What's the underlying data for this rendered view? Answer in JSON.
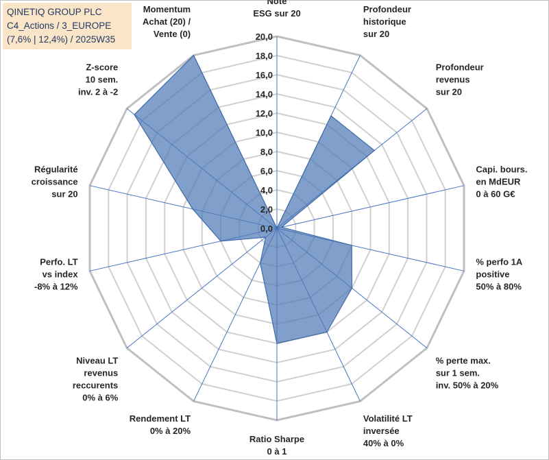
{
  "title_box": {
    "line1": "QINETIQ GROUP PLC",
    "line2": "C4_Actions / 3_EUROPE",
    "line3": "(7,6% | 12,4%) / 2025W35",
    "background": "#fbe5c8",
    "text_color": "#1f3a63"
  },
  "chart_data": {
    "type": "radar",
    "title": "QINETIQ GROUP PLC",
    "grid": true,
    "rlim": [
      0,
      20
    ],
    "tick_labels": [
      "0,0",
      "2,0",
      "4,0",
      "6,0",
      "8,0",
      "10,0",
      "12,0",
      "14,0",
      "16,0",
      "18,0",
      "20,0"
    ],
    "categories": [
      [
        "Note",
        "ESG sur 20"
      ],
      [
        "Profondeur",
        "historique",
        "sur 20"
      ],
      [
        "Profondeur",
        "revenus",
        "sur 20"
      ],
      [
        "Capi. bours.",
        "en MdEUR",
        "0 à 60 G€"
      ],
      [
        "% perfo 1A",
        "positive",
        "50% à 80%"
      ],
      [
        "% perte max.",
        "sur 1 sem.",
        "inv. 50% à 20%"
      ],
      [
        "Volatilité LT",
        "inversée",
        "40% à 0%"
      ],
      [
        "Ratio Sharpe",
        "0 à 1"
      ],
      [
        "Rendement LT",
        "0% à 20%"
      ],
      [
        "Niveau LT",
        "revenus",
        "reccurents",
        "0% à 6%"
      ],
      [
        "Perfo. LT",
        "vs index",
        "-8% à 12%"
      ],
      [
        "Régularité",
        "croissance",
        "sur 20"
      ],
      [
        "Z-score",
        "10 sem.",
        "inv. 2 à -2"
      ],
      [
        "Momentum",
        "Achat (20) /",
        "Vente (0)"
      ]
    ],
    "series": [
      {
        "values": [
          0.0,
          13.0,
          13.0,
          0.5,
          8.0,
          10.0,
          12.0,
          12.0,
          4.0,
          1.5,
          6.0,
          9.0,
          19.0,
          20.0
        ],
        "color": "#4f7ab5"
      }
    ]
  }
}
